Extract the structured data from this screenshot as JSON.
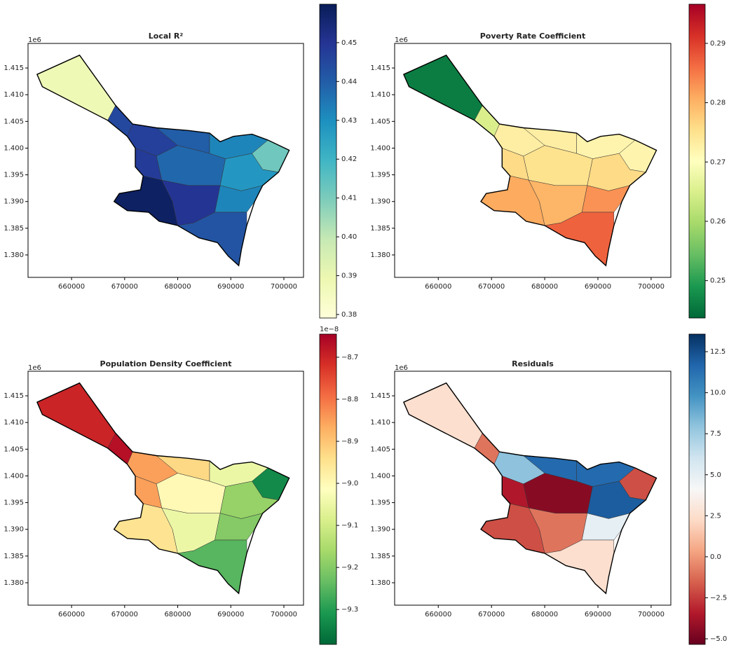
{
  "chart_data": [
    {
      "type": "choropleth",
      "title": "Local R²",
      "offset_label": "1e6",
      "xlim": [
        651800,
        703700
      ],
      "ylim": [
        1.3758,
        1.4196
      ],
      "xticks": [
        660000,
        670000,
        680000,
        690000,
        700000
      ],
      "yticks": [
        {
          "value": 1.38,
          "label": "1.380"
        },
        {
          "value": 1.385,
          "label": "1.385"
        },
        {
          "value": 1.39,
          "label": "1.390"
        },
        {
          "value": 1.395,
          "label": "1.395"
        },
        {
          "value": 1.4,
          "label": "1.400"
        },
        {
          "value": 1.405,
          "label": "1.405"
        },
        {
          "value": 1.41,
          "label": "1.410"
        },
        {
          "value": 1.415,
          "label": "1.415"
        }
      ],
      "clim": [
        0.3791,
        0.4599
      ],
      "cticks": [
        0.38,
        0.39,
        {
          "value": 0.4,
          "label": "0.40"
        },
        0.41,
        0.42,
        0.43,
        0.44,
        0.45
      ],
      "colormap": [
        "#ffffd9",
        "#edf8b1",
        "#c7e9b4",
        "#7fcdbb",
        "#41b6c4",
        "#1d91c0",
        "#225ea8",
        "#253494",
        "#081d58"
      ],
      "region_values": [
        0.388,
        0.445,
        0.447,
        0.44,
        0.432,
        0.412,
        0.448,
        0.438,
        0.428,
        0.458,
        0.45,
        0.432,
        0.442
      ]
    },
    {
      "type": "choropleth",
      "title": "Poverty Rate Coefficient",
      "offset_label": "1e6",
      "xlim": [
        651800,
        703700
      ],
      "ylim": [
        1.3758,
        1.4196
      ],
      "xticks": [
        660000,
        670000,
        680000,
        690000,
        700000
      ],
      "yticks": [
        {
          "value": 1.38,
          "label": "1.380"
        },
        {
          "value": 1.385,
          "label": "1.385"
        },
        {
          "value": 1.39,
          "label": "1.390"
        },
        {
          "value": 1.395,
          "label": "1.395"
        },
        {
          "value": 1.4,
          "label": "1.400"
        },
        {
          "value": 1.405,
          "label": "1.405"
        },
        {
          "value": 1.41,
          "label": "1.410"
        },
        {
          "value": 1.415,
          "label": "1.415"
        }
      ],
      "clim": [
        0.2437,
        0.2966
      ],
      "cticks": [
        0.25,
        0.26,
        0.27,
        0.28,
        0.29
      ],
      "colormap": [
        "#006837",
        "#1a9850",
        "#66bd63",
        "#a6d96a",
        "#d9ef8b",
        "#ffffbf",
        "#fee08b",
        "#fdae61",
        "#f46d43",
        "#d73027",
        "#a50026"
      ],
      "region_values": [
        0.246,
        0.265,
        0.273,
        0.273,
        0.272,
        0.272,
        0.276,
        0.275,
        0.276,
        0.281,
        0.28,
        0.283,
        0.287
      ]
    },
    {
      "type": "choropleth",
      "title": "Population Density Coefficient",
      "offset_label": "1e6",
      "colorbar_offset_label": "1e−8",
      "xlim": [
        651800,
        703700
      ],
      "ylim": [
        1.3758,
        1.4196
      ],
      "xticks": [
        660000,
        670000,
        680000,
        690000,
        700000
      ],
      "yticks": [
        {
          "value": 1.38,
          "label": "1.380"
        },
        {
          "value": 1.385,
          "label": "1.385"
        },
        {
          "value": 1.39,
          "label": "1.390"
        },
        {
          "value": 1.395,
          "label": "1.395"
        },
        {
          "value": 1.4,
          "label": "1.400"
        },
        {
          "value": 1.405,
          "label": "1.405"
        },
        {
          "value": 1.41,
          "label": "1.410"
        },
        {
          "value": 1.415,
          "label": "1.415"
        }
      ],
      "clim": [
        -9.383,
        -8.645
      ],
      "cticks": [
        {
          "value": -9.3,
          "label": "−9.3"
        },
        {
          "value": -9.2,
          "label": "−9.2"
        },
        {
          "value": -9.1,
          "label": "−9.1"
        },
        {
          "value": -9.0,
          "label": "−9.0"
        },
        {
          "value": -8.9,
          "label": "−8.9"
        },
        {
          "value": -8.8,
          "label": "−8.8"
        },
        {
          "value": -8.7,
          "label": "−8.7"
        }
      ],
      "colormap": [
        "#006837",
        "#1a9850",
        "#66bd63",
        "#a6d96a",
        "#d9ef8b",
        "#ffffbf",
        "#fee08b",
        "#fdae61",
        "#f46d43",
        "#d73027",
        "#a50026"
      ],
      "region_values": [
        -8.7,
        -8.67,
        -8.85,
        -8.93,
        -9.05,
        -9.33,
        -8.85,
        -9.0,
        -9.18,
        -8.95,
        -9.05,
        -9.2,
        -9.25
      ]
    },
    {
      "type": "choropleth",
      "title": "Residuals",
      "offset_label": "1e6",
      "xlim": [
        651800,
        703700
      ],
      "ylim": [
        1.3758,
        1.4196
      ],
      "xticks": [
        660000,
        670000,
        680000,
        690000,
        700000
      ],
      "yticks": [
        {
          "value": 1.38,
          "label": "1.380"
        },
        {
          "value": 1.385,
          "label": "1.385"
        },
        {
          "value": 1.39,
          "label": "1.390"
        },
        {
          "value": 1.395,
          "label": "1.395"
        },
        {
          "value": 1.4,
          "label": "1.400"
        },
        {
          "value": 1.405,
          "label": "1.405"
        },
        {
          "value": 1.41,
          "label": "1.410"
        },
        {
          "value": 1.415,
          "label": "1.415"
        }
      ],
      "clim": [
        -5.34,
        13.57
      ],
      "cticks": [
        {
          "value": -5.0,
          "label": "−5.0"
        },
        {
          "value": -2.5,
          "label": "−2.5"
        },
        {
          "value": 0,
          "label": "0.0"
        },
        2.5,
        {
          "value": 5,
          "label": "5.0"
        },
        7.5,
        {
          "value": 10,
          "label": "10.0"
        },
        12.5
      ],
      "colormap": [
        "#67001f",
        "#b2182b",
        "#d6604d",
        "#f4a582",
        "#fddbc7",
        "#f7f7f7",
        "#d1e5f0",
        "#92c5de",
        "#4393c3",
        "#2166ac",
        "#053061"
      ],
      "region_values": [
        2.5,
        -1.0,
        8.0,
        11.5,
        11.5,
        -2.0,
        -3.5,
        -4.5,
        12.0,
        -2.0,
        -1.0,
        5.0,
        2.5
      ]
    }
  ]
}
